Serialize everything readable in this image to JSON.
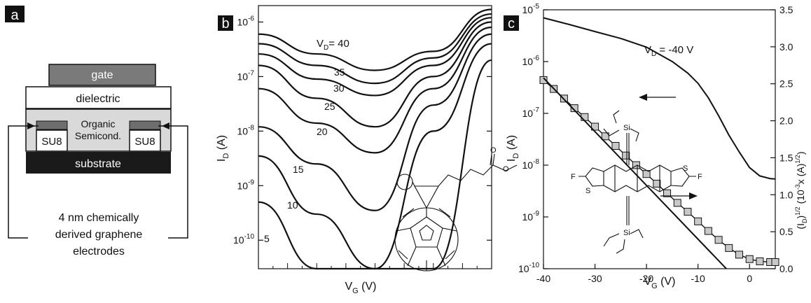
{
  "panel_a": {
    "letter": "a",
    "layers": {
      "gate": "gate",
      "dielectric": "dielectric",
      "semiconductor_line1": "Organic",
      "semiconductor_line2": "Semicond.",
      "su8_left": "SU8",
      "su8_right": "SU8",
      "substrate": "substrate"
    },
    "caption": [
      "4 nm chemically",
      "derived graphene",
      "electrodes"
    ],
    "colors": {
      "gate": "#7a7a7a",
      "semiconductor": "#d9d9d9",
      "substrate": "#1a1a1a",
      "electrode": "#6e6e6e"
    }
  },
  "chart_data": [
    {
      "panel": "b",
      "type": "line",
      "title": "",
      "xlabel": "V_G (V)",
      "ylabel": "I_D (A)",
      "x_tick_labels": [],
      "y_scale": "log",
      "ylim": [
        3e-11,
        2e-06
      ],
      "y_ticks": [
        1e-10,
        1e-09,
        1e-08,
        1e-07,
        1e-06
      ],
      "y_tick_labels": [
        {
          "base": "10",
          "exp": "-10"
        },
        {
          "base": "10",
          "exp": "-9"
        },
        {
          "base": "10",
          "exp": "-8"
        },
        {
          "base": "10",
          "exp": "-7"
        },
        {
          "base": "10",
          "exp": "-6"
        }
      ],
      "curve_labels": [
        {
          "text": "V",
          "sub": "D",
          "rest": "= 40"
        },
        {
          "text": "35"
        },
        {
          "text": "30"
        },
        {
          "text": "25"
        },
        {
          "text": "20"
        },
        {
          "text": "15"
        },
        {
          "text": "10"
        },
        {
          "text": "5"
        }
      ],
      "series": [
        {
          "values": [
            6e-07,
            2.6e-07,
            1.3e-07,
            2.9e-07,
            1.7e-06
          ]
        },
        {
          "values": [
            4e-07,
            1.6e-07,
            7.5e-08,
            2.2e-07,
            1.4e-06
          ]
        },
        {
          "values": [
            2.6e-07,
            9e-08,
            4.5e-08,
            1.6e-07,
            1.2e-06
          ]
        },
        {
          "values": [
            1.6e-07,
            4e-08,
            1.2e-08,
            1e-07,
            1e-06
          ]
        },
        {
          "values": [
            6e-08,
            1.4e-08,
            4e-09,
            6e-08,
            8e-07
          ]
        },
        {
          "values": [
            1.2e-08,
            2.5e-09,
            3.5e-10,
            3e-08,
            6e-07
          ]
        },
        {
          "values": [
            3.5e-09,
            3e-10,
            3e-11,
            1e-08,
            4e-07
          ]
        },
        {
          "values": [
            5e-10,
            3e-11,
            3e-11,
            3e-11,
            2e-07
          ]
        }
      ]
    },
    {
      "panel": "c",
      "type": "line",
      "title": "",
      "annotation": {
        "text": "V",
        "sub": "D",
        "rest": " = -40 V"
      },
      "xlabel": "V_G (V)",
      "ylabel_left": "I_D (A)",
      "ylabel_right": "(I_D)^1/2 (10^-3 x (A)^1/2)",
      "xlim": [
        -40,
        5
      ],
      "x_ticks": [
        -40,
        -30,
        -20,
        -10,
        0
      ],
      "y_scale_left": "log",
      "ylim_left": [
        1e-10,
        1e-05
      ],
      "y_ticks_left": [
        1e-10,
        1e-09,
        1e-08,
        1e-07,
        1e-06,
        1e-05
      ],
      "y_tick_labels_left": [
        {
          "base": "10",
          "exp": "-10"
        },
        {
          "base": "10",
          "exp": "-9"
        },
        {
          "base": "10",
          "exp": "-8"
        },
        {
          "base": "10",
          "exp": "-7"
        },
        {
          "base": "10",
          "exp": "-6"
        },
        {
          "base": "10",
          "exp": "-5"
        }
      ],
      "ylim_right": [
        0,
        3.5
      ],
      "y_ticks_right": [
        "0.0",
        "0.5",
        "1.0",
        "1.5",
        "2.0",
        "2.5",
        "3.0",
        "3.5"
      ],
      "series": [
        {
          "axis": "left",
          "x": [
            -40,
            -35,
            -30,
            -25,
            -20,
            -15,
            -12,
            -10,
            -8,
            -6,
            -4,
            -2,
            0,
            2,
            4,
            5
          ],
          "values": [
            7e-06,
            5.2e-06,
            3.8e-06,
            2.8e-06,
            1.9e-06,
            1e-06,
            6e-07,
            3.8e-07,
            2e-07,
            9e-08,
            3.8e-08,
            1.8e-08,
            9e-09,
            6.2e-09,
            5.5e-09,
            5.4e-09
          ]
        },
        {
          "axis": "right",
          "markers": true,
          "x": [
            -40,
            -38,
            -36,
            -34,
            -32,
            -30,
            -28,
            -26,
            -24,
            -22,
            -20,
            -18,
            -16,
            -14,
            -12,
            -10,
            -8,
            -6,
            -4,
            -2,
            0,
            2,
            4,
            5
          ],
          "values": [
            2.55,
            2.43,
            2.3,
            2.17,
            2.05,
            1.92,
            1.79,
            1.66,
            1.53,
            1.4,
            1.28,
            1.15,
            1.02,
            0.89,
            0.77,
            0.64,
            0.51,
            0.39,
            0.28,
            0.19,
            0.13,
            0.1,
            0.09,
            0.09
          ]
        },
        {
          "axis": "right",
          "markers": false,
          "fit": true,
          "x": [
            -40,
            -4.5
          ],
          "values": [
            2.58,
            0.0
          ]
        }
      ]
    }
  ],
  "panel_b_letter": "b",
  "panel_c_letter": "c",
  "axis_text": {
    "xlabel_main": "V",
    "xlabel_sub": "G",
    "xlabel_unit": " (V)",
    "ylabel_main": "I",
    "ylabel_sub": "D",
    "ylabel_unit": " (A)",
    "rlabel_a": "(I",
    "rlabel_b": "D",
    "rlabel_c": ")",
    "rlabel_d": "1/2",
    "rlabel_e": " (10",
    "rlabel_f": "-3",
    "rlabel_g": "x (A)",
    "rlabel_h": "1/2",
    "rlabel_i": ")"
  },
  "molecule_labels": {
    "si": "Si",
    "f": "F",
    "s": "S",
    "o": "O"
  }
}
